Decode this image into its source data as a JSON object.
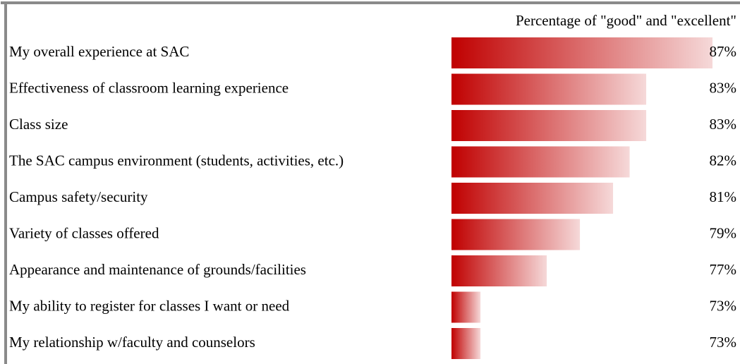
{
  "chart_data": {
    "type": "barh",
    "title": "Percentage of \"good\" and \"excellent\"",
    "categories": [
      "My overall experience at SAC",
      "Effectiveness of classroom learning experience",
      "Class size",
      "The SAC campus environment (students, activities, etc.)",
      "Campus safety/security",
      "Variety of classes offered",
      "Appearance and maintenance of grounds/facilities",
      "My ability to register for classes I want or need",
      "My relationship w/faculty and counselors"
    ],
    "values": [
      87,
      83,
      83,
      82,
      81,
      79,
      77,
      73,
      73
    ],
    "value_labels": [
      "87%",
      "83%",
      "83%",
      "82%",
      "81%",
      "79%",
      "77%",
      "73%",
      "73%"
    ],
    "color": "#c00000",
    "xlim": [
      71.25,
      87
    ]
  }
}
